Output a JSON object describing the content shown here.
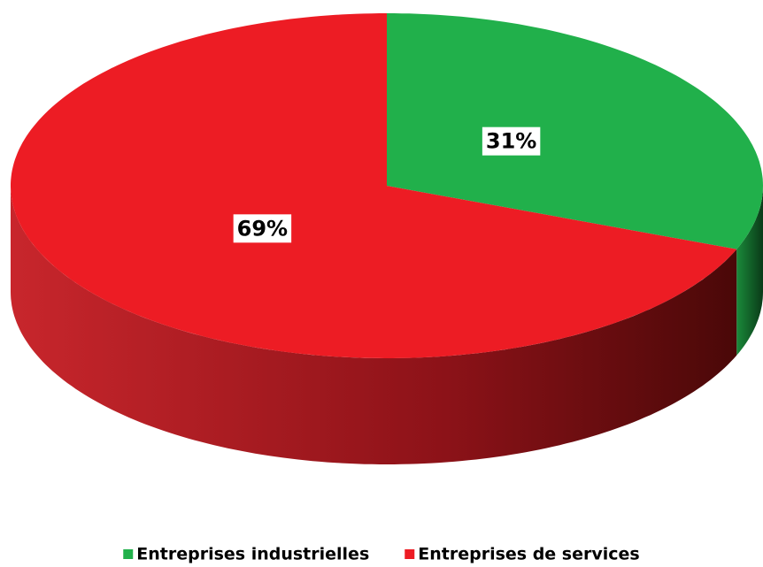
{
  "chart_data": {
    "type": "pie",
    "categories": [
      "Entreprises industrielles",
      "Entreprises de services"
    ],
    "values": [
      31,
      69
    ],
    "value_labels": [
      "31%",
      "69%"
    ],
    "colors": [
      "#21b04b",
      "#ed1c24"
    ],
    "three_d": true,
    "legend": "bottom"
  }
}
